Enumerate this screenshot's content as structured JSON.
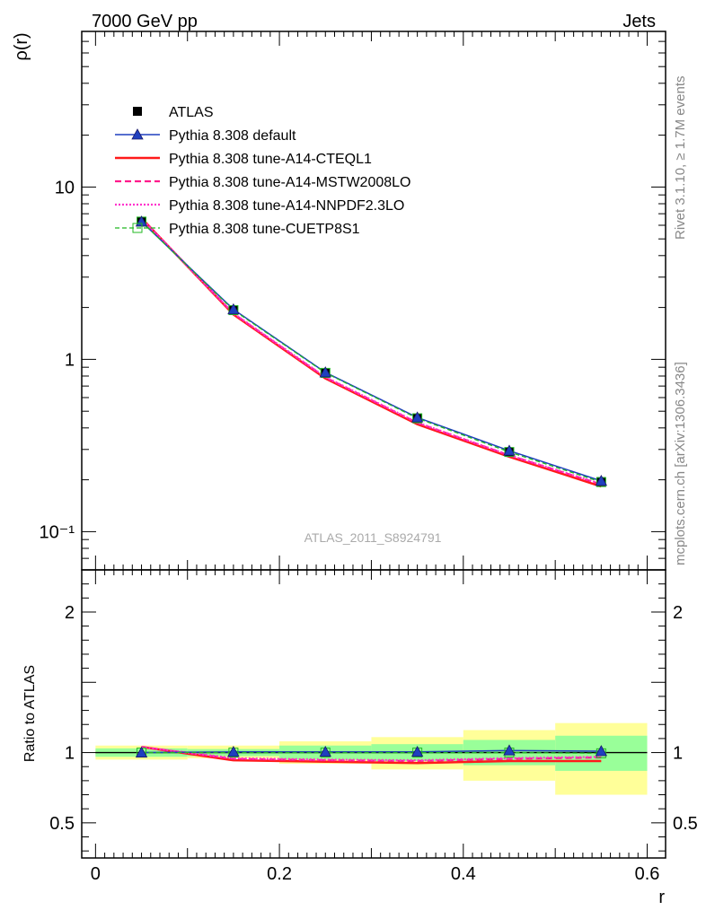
{
  "header": {
    "left": "7000 GeV pp",
    "right": "Jets"
  },
  "side_labels": {
    "rivet": "Rivet 3.1.10, ≥ 1.7M events",
    "mcplots": "mcplots.cern.ch [arXiv:1306.3436]"
  },
  "watermark": "ATLAS_2011_S8924791",
  "colors": {
    "atlas": "#000000",
    "default": "#1f3fbf",
    "cteql1": "#ff1a1a",
    "mstw": "#ff1a8c",
    "nnpdf": "#ff33cc",
    "cuetp8s1": "#22b822",
    "band_inner": "#99ff99",
    "band_outer": "#ffff99"
  },
  "legend": {
    "items": [
      {
        "key": "atlas",
        "label": "ATLAS"
      },
      {
        "key": "default",
        "label": "Pythia 8.308 default"
      },
      {
        "key": "cteql1",
        "label": "Pythia 8.308 tune-A14-CTEQL1"
      },
      {
        "key": "mstw",
        "label": "Pythia 8.308 tune-A14-MSTW2008LO"
      },
      {
        "key": "nnpdf",
        "label": "Pythia 8.308 tune-A14-NNPDF2.3LO"
      },
      {
        "key": "cuetp8s1",
        "label": "Pythia 8.308 tune-CUETP8S1"
      }
    ]
  },
  "chart_data": [
    {
      "type": "line",
      "ylabel": "ρ(r)",
      "yscale": "log",
      "ylim": [
        0.06,
        80
      ],
      "xlim": [
        -0.015,
        0.62
      ],
      "y_ticks": [
        {
          "value": 10,
          "label": "10"
        },
        {
          "value": 1,
          "label": "1"
        },
        {
          "value": 0.1,
          "label": "10⁻¹"
        }
      ],
      "x": [
        0.05,
        0.15,
        0.25,
        0.35,
        0.45,
        0.55
      ],
      "series": [
        {
          "key": "atlas",
          "name": "ATLAS",
          "values": [
            6.3,
            1.93,
            0.83,
            0.455,
            0.29,
            0.195
          ]
        },
        {
          "key": "default",
          "name": "Pythia 8.308 default",
          "values": [
            6.3,
            1.95,
            0.84,
            0.46,
            0.295,
            0.197
          ]
        },
        {
          "key": "cteql1",
          "name": "Pythia 8.308 tune-A14-CTEQL1",
          "values": [
            6.6,
            1.82,
            0.775,
            0.42,
            0.272,
            0.183
          ]
        },
        {
          "key": "mstw",
          "name": "Pythia 8.308 tune-A14-MSTW2008LO",
          "values": [
            6.55,
            1.84,
            0.785,
            0.428,
            0.277,
            0.188
          ]
        },
        {
          "key": "nnpdf",
          "name": "Pythia 8.308 tune-A14-NNPDF2.3LO",
          "values": [
            6.55,
            1.85,
            0.79,
            0.43,
            0.278,
            0.189
          ]
        },
        {
          "key": "cuetp8s1",
          "name": "Pythia 8.308 tune-CUETP8S1",
          "values": [
            6.3,
            1.93,
            0.835,
            0.455,
            0.29,
            0.194
          ]
        }
      ]
    },
    {
      "type": "line",
      "ylabel": "Ratio to ATLAS",
      "xlabel": "r",
      "ylim": [
        0.25,
        2.3
      ],
      "xlim": [
        -0.015,
        0.62
      ],
      "y_ticks": [
        {
          "value": 2,
          "label": "2"
        },
        {
          "value": 1,
          "label": "1"
        },
        {
          "value": 0.5,
          "label": "0.5"
        }
      ],
      "x_ticks": [
        {
          "value": 0,
          "label": "0"
        },
        {
          "value": 0.2,
          "label": "0.2"
        },
        {
          "value": 0.4,
          "label": "0.4"
        },
        {
          "value": 0.6,
          "label": "0.6"
        }
      ],
      "bands": {
        "bin_edges": [
          0,
          0.1,
          0.2,
          0.3,
          0.4,
          0.5,
          0.6
        ],
        "inner": [
          [
            0.97,
            1.03
          ],
          [
            0.975,
            1.025
          ],
          [
            0.95,
            1.05
          ],
          [
            0.94,
            1.06
          ],
          [
            0.91,
            1.09
          ],
          [
            0.87,
            1.12
          ]
        ],
        "outer": [
          [
            0.95,
            1.05
          ],
          [
            0.96,
            1.05
          ],
          [
            0.92,
            1.08
          ],
          [
            0.88,
            1.11
          ],
          [
            0.8,
            1.16
          ],
          [
            0.7,
            1.21
          ]
        ]
      },
      "x": [
        0.05,
        0.15,
        0.25,
        0.35,
        0.45,
        0.55
      ],
      "series": [
        {
          "key": "default",
          "name": "Pythia 8.308 default",
          "values": [
            1.0,
            1.005,
            1.005,
            1.005,
            1.015,
            1.01
          ]
        },
        {
          "key": "cteql1",
          "name": "Pythia 8.308 tune-A14-CTEQL1",
          "values": [
            1.04,
            0.945,
            0.935,
            0.925,
            0.94,
            0.94
          ]
        },
        {
          "key": "mstw",
          "name": "Pythia 8.308 tune-A14-MSTW2008LO",
          "values": [
            1.04,
            0.955,
            0.945,
            0.94,
            0.955,
            0.965
          ]
        },
        {
          "key": "nnpdf",
          "name": "Pythia 8.308 tune-A14-NNPDF2.3LO",
          "values": [
            1.04,
            0.96,
            0.95,
            0.945,
            0.96,
            0.97
          ]
        },
        {
          "key": "cuetp8s1",
          "name": "Pythia 8.308 tune-CUETP8S1",
          "values": [
            1.0,
            1.0,
            1.0,
            1.0,
            1.0,
            0.995
          ]
        }
      ]
    }
  ]
}
